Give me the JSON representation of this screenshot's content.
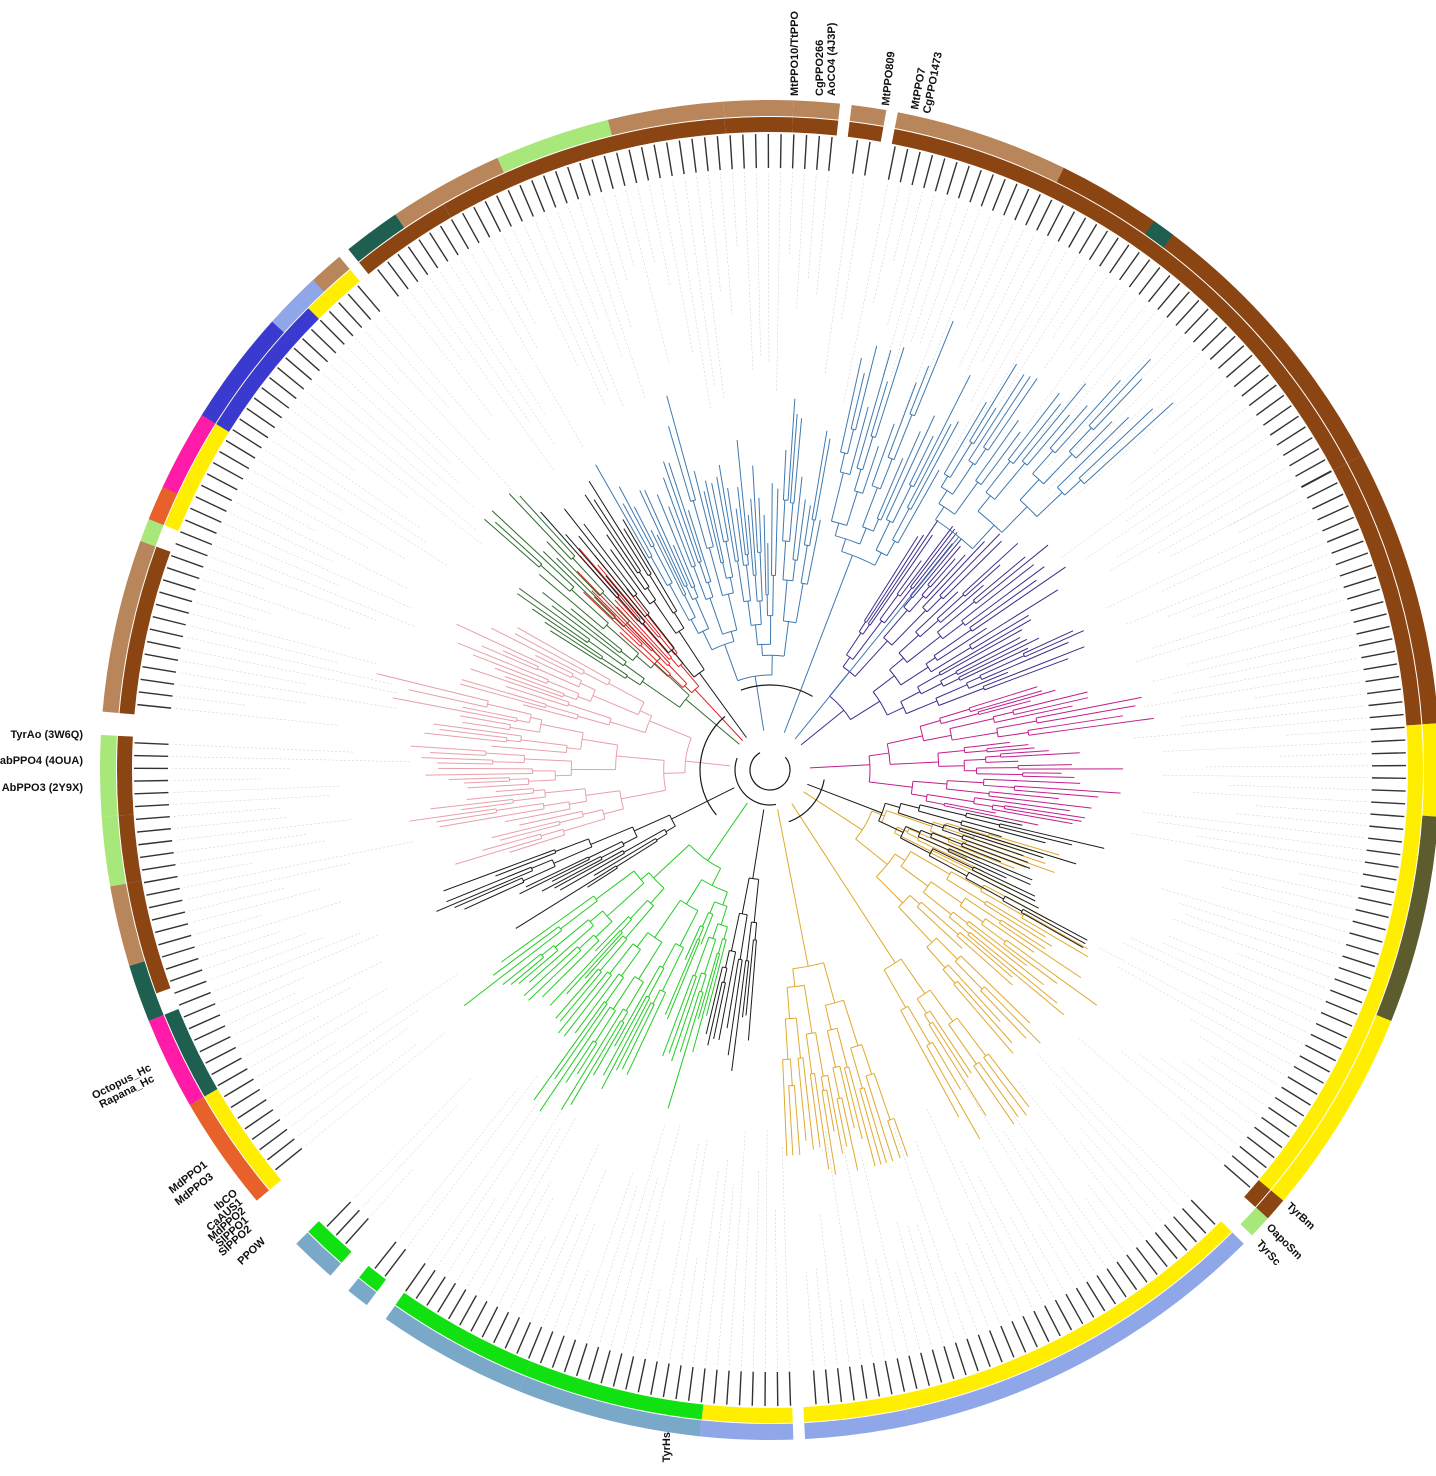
{
  "figure": {
    "type": "circular-phylogenetic-tree",
    "branch_colors": {
      "dark_blue": "#2d4a8a",
      "steel_blue": "#3f79b0",
      "purple": "#3f2c8a",
      "magenta": "#c21e8c",
      "gold": "#e0a92e",
      "black": "#1a1a1a",
      "green": "#22cc22",
      "pink": "#e8a0a8",
      "olive": "#2d6b2d",
      "red": "#e02020"
    },
    "ring_colors": {
      "brown_dark": "#8b4513",
      "brown_light": "#b8865a",
      "olive": "#5c5c2e",
      "yellow": "#ffee00",
      "periwinkle": "#8fa7e8",
      "green": "#11e011",
      "steel": "#7aa8c8",
      "light_green": "#a8e87a",
      "teal": "#1e5f4f",
      "blue": "#3a3ad0",
      "pink": "#ff1aa8",
      "orange": "#e8602a"
    }
  },
  "callouts": [
    {
      "id": "mtppo010",
      "text": "MtPPO10/TtPPO"
    },
    {
      "id": "cgppo266",
      "text": "CgPPO266"
    },
    {
      "id": "aoco4",
      "text": "AoCO4 (4J3P)"
    },
    {
      "id": "mtppo809",
      "text": "MtPPO809"
    },
    {
      "id": "mtppo7",
      "text": "MtPPO7"
    },
    {
      "id": "cgppo1473",
      "text": "CgPPO1473"
    },
    {
      "id": "tyrao",
      "text": "TyrAo (3W6Q)"
    },
    {
      "id": "abppo4",
      "text": "abPPO4 (4OUA)"
    },
    {
      "id": "abppo3",
      "text": "AbPPO3 (2Y9X)"
    },
    {
      "id": "octopus",
      "text": "Octopus_Hc"
    },
    {
      "id": "rapana",
      "text": "Rapana_Hc"
    },
    {
      "id": "mdppo1",
      "text": "MdPPO1"
    },
    {
      "id": "mdppo3",
      "text": "MdPPO3"
    },
    {
      "id": "ibco",
      "text": "IbCO"
    },
    {
      "id": "caaus1",
      "text": "CaAUS1"
    },
    {
      "id": "mdppo2",
      "text": "MdPPO2"
    },
    {
      "id": "slppo1",
      "text": "SlPPO1"
    },
    {
      "id": "slppo2",
      "text": "SlPPO2"
    },
    {
      "id": "ppow",
      "text": "PPOW"
    },
    {
      "id": "tyrbm",
      "text": "TyrBm"
    },
    {
      "id": "oaposm",
      "text": "OapoSm"
    },
    {
      "id": "tyrsc",
      "text": "TyrSc"
    },
    {
      "id": "tyrhs",
      "text": "TyrHs"
    }
  ]
}
